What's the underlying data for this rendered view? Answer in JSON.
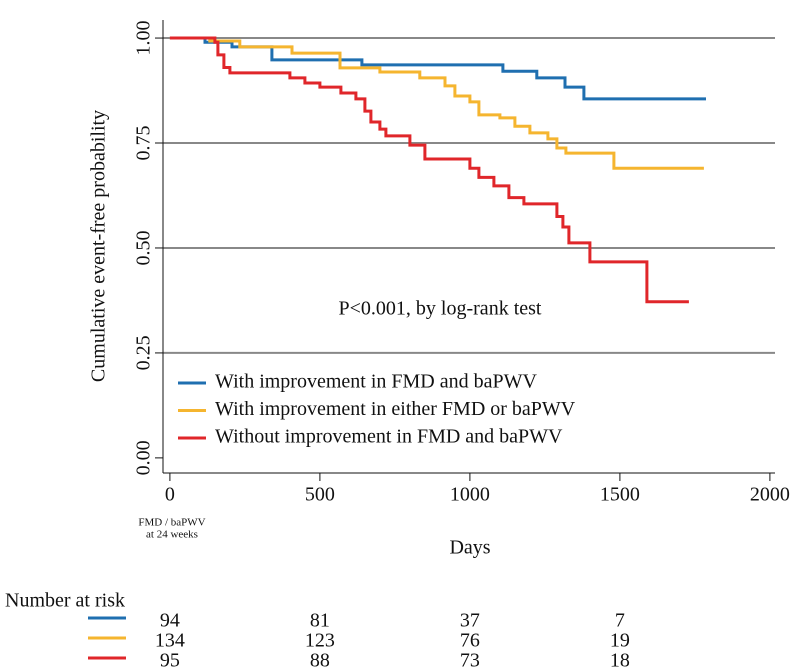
{
  "chart_data": {
    "type": "line",
    "x_label": "Days",
    "y_label": "Cumulative event-free probability",
    "annotation": "P<0.001, by log-rank test",
    "x_note": [
      "FMD / baPWV",
      "at 24 weeks"
    ],
    "risk_title": "Number at risk",
    "xlim": [
      -23,
      2017
    ],
    "xticks": [
      0,
      500,
      1000,
      1500,
      2000
    ],
    "ylim": [
      -0.036,
      1.043
    ],
    "yticks": [
      {
        "value": 0,
        "label": "0.00"
      },
      {
        "value": 0.25,
        "label": "0.25"
      },
      {
        "value": 0.5,
        "label": "0.50"
      },
      {
        "value": 0.75,
        "label": "0.75"
      },
      {
        "value": 1,
        "label": "1.00"
      }
    ],
    "grid": true,
    "series": [
      {
        "name": "With improvement in FMD and baPWV",
        "color": "#1f6fb0",
        "x": [
          0,
          117,
          207,
          340,
          640,
          1110,
          1223,
          1317,
          1380,
          1787
        ],
        "values": [
          1.0,
          0.99,
          0.979,
          0.948,
          0.936,
          0.921,
          0.905,
          0.883,
          0.855,
          0.855
        ],
        "at_risk": [
          94,
          81,
          37,
          7
        ]
      },
      {
        "name": "With improvement in either FMD or baPWV",
        "color": "#f5b52f",
        "x": [
          0,
          133,
          233,
          407,
          567,
          700,
          833,
          917,
          950,
          1000,
          1030,
          1100,
          1150,
          1200,
          1260,
          1290,
          1320,
          1480,
          1780
        ],
        "values": [
          1.0,
          0.993,
          0.979,
          0.964,
          0.929,
          0.919,
          0.905,
          0.886,
          0.862,
          0.848,
          0.817,
          0.81,
          0.79,
          0.774,
          0.76,
          0.738,
          0.726,
          0.69,
          0.69
        ],
        "at_risk": [
          134,
          123,
          76,
          19
        ]
      },
      {
        "name": "Without improvement in FMD and baPWV",
        "color": "#e0262a",
        "x": [
          0,
          150,
          160,
          180,
          200,
          400,
          450,
          500,
          570,
          620,
          650,
          670,
          700,
          720,
          800,
          850,
          1000,
          1030,
          1080,
          1130,
          1180,
          1290,
          1310,
          1330,
          1400,
          1590,
          1730
        ],
        "values": [
          1.0,
          0.99,
          0.96,
          0.93,
          0.917,
          0.905,
          0.893,
          0.883,
          0.869,
          0.855,
          0.826,
          0.8,
          0.783,
          0.767,
          0.745,
          0.712,
          0.69,
          0.668,
          0.648,
          0.62,
          0.605,
          0.575,
          0.55,
          0.512,
          0.467,
          0.372,
          0.372
        ],
        "at_risk": [
          95,
          88,
          73,
          18
        ]
      }
    ]
  }
}
